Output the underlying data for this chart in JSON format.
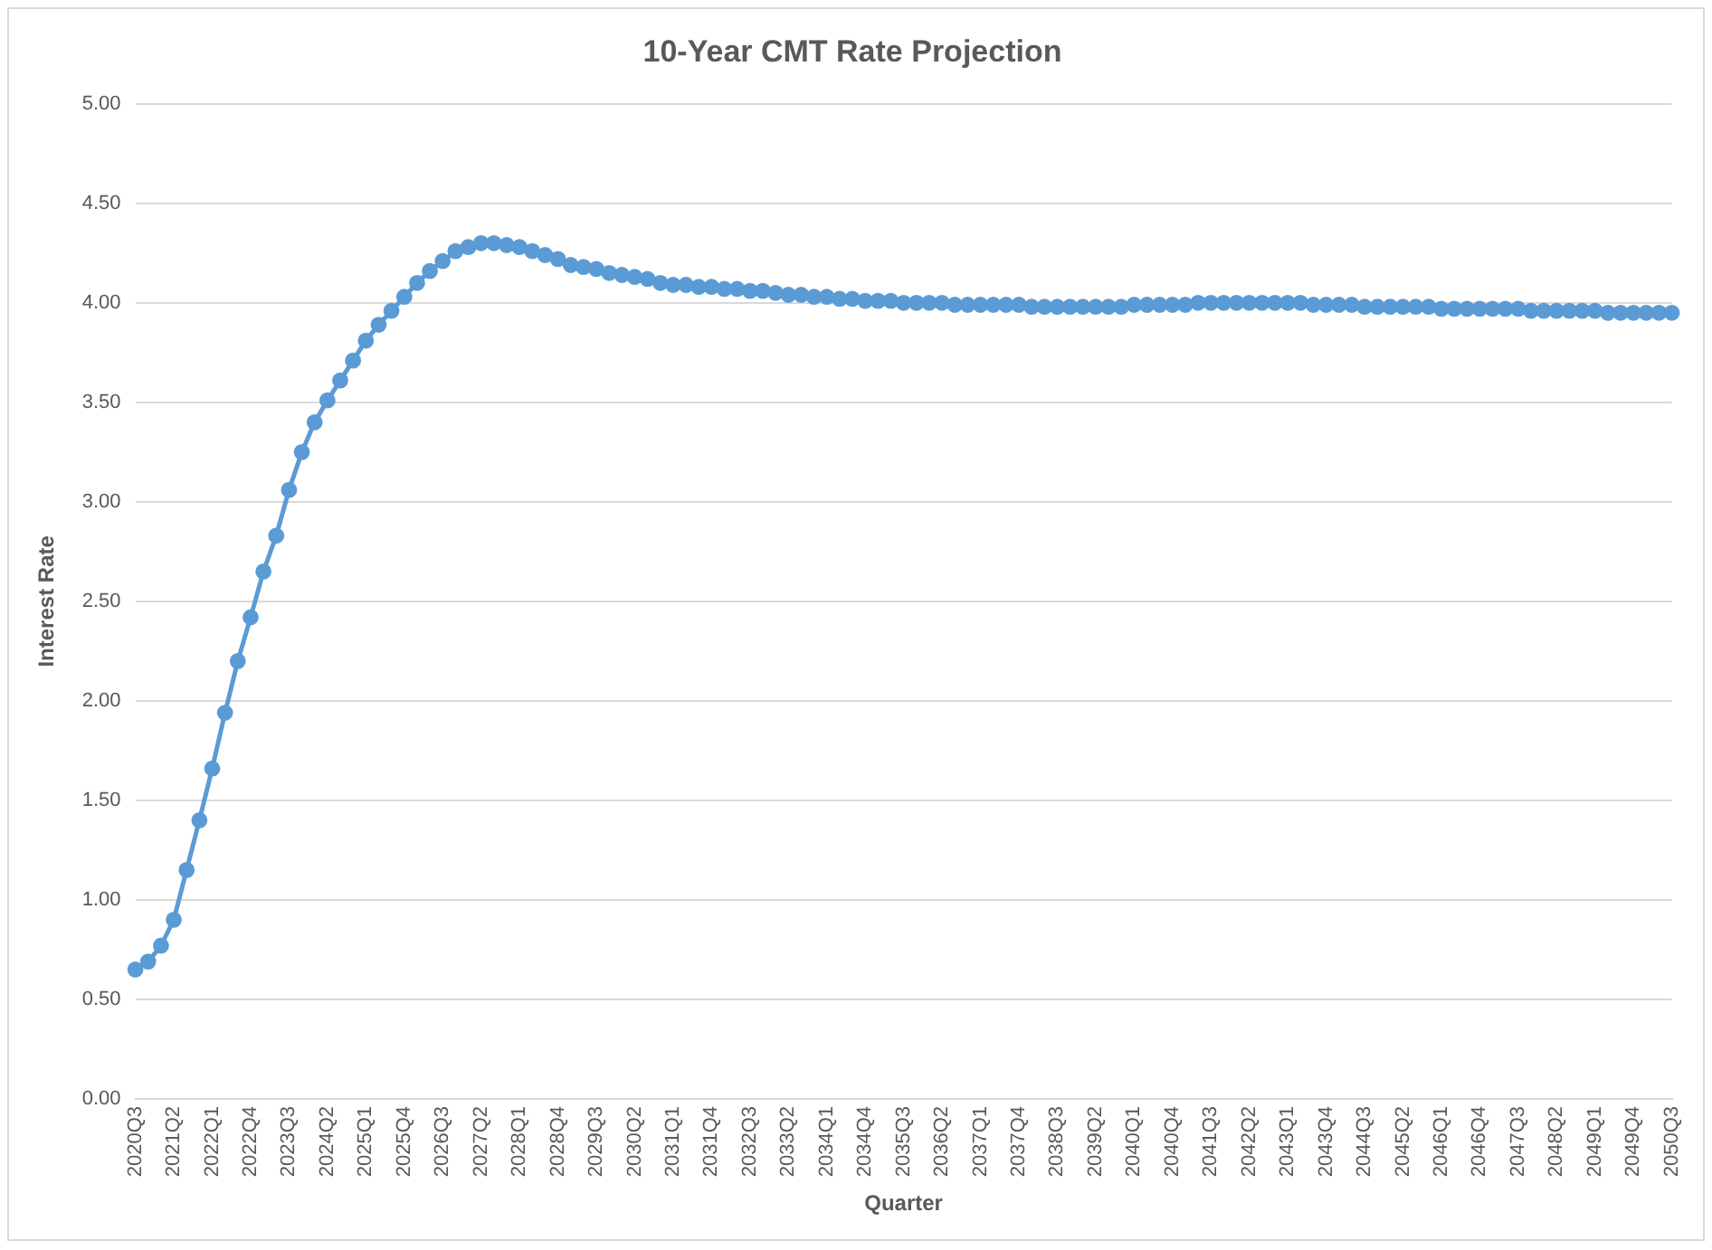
{
  "chart_data": {
    "type": "line",
    "title": "10-Year CMT Rate Projection",
    "xlabel": "Quarter",
    "ylabel": "Interest Rate",
    "categories": [
      "2020Q3",
      null,
      null,
      "2021Q2",
      null,
      null,
      "2022Q1",
      null,
      null,
      "2022Q4",
      null,
      null,
      "2023Q3",
      null,
      null,
      "2024Q2",
      null,
      null,
      "2025Q1",
      null,
      null,
      "2025Q4",
      null,
      null,
      "2026Q3",
      null,
      null,
      "2027Q2",
      null,
      null,
      "2028Q1",
      null,
      null,
      "2028Q4",
      null,
      null,
      "2029Q3",
      null,
      null,
      "2030Q2",
      null,
      null,
      "2031Q1",
      null,
      null,
      "2031Q4",
      null,
      null,
      "2032Q3",
      null,
      null,
      "2033Q2",
      null,
      null,
      "2034Q1",
      null,
      null,
      "2034Q4",
      null,
      null,
      "2035Q3",
      null,
      null,
      "2036Q2",
      null,
      null,
      "2037Q1",
      null,
      null,
      "2037Q4",
      null,
      null,
      "2038Q3",
      null,
      null,
      "2039Q2",
      null,
      null,
      "2040Q1",
      null,
      null,
      "2040Q4",
      null,
      null,
      "2041Q3",
      null,
      null,
      "2042Q2",
      null,
      null,
      "2043Q1",
      null,
      null,
      "2043Q4",
      null,
      null,
      "2044Q3",
      null,
      null,
      "2045Q2",
      null,
      null,
      "2046Q1",
      null,
      null,
      "2046Q4",
      null,
      null,
      "2047Q3",
      null,
      null,
      "2048Q2",
      null,
      null,
      "2049Q1",
      null,
      null,
      "2049Q4",
      null,
      null,
      "2050Q3"
    ],
    "series": [
      {
        "color": "#5b9bd5",
        "values": [
          0.65,
          0.69,
          0.77,
          0.9,
          1.15,
          1.4,
          1.66,
          1.94,
          2.2,
          2.42,
          2.65,
          2.83,
          3.06,
          3.25,
          3.4,
          3.51,
          3.61,
          3.71,
          3.81,
          3.89,
          3.96,
          4.03,
          4.1,
          4.16,
          4.21,
          4.26,
          4.28,
          4.3,
          4.3,
          4.29,
          4.28,
          4.26,
          4.24,
          4.22,
          4.19,
          4.18,
          4.17,
          4.15,
          4.14,
          4.13,
          4.12,
          4.1,
          4.09,
          4.09,
          4.08,
          4.08,
          4.07,
          4.07,
          4.06,
          4.06,
          4.05,
          4.04,
          4.04,
          4.03,
          4.03,
          4.02,
          4.02,
          4.01,
          4.01,
          4.01,
          4.0,
          4.0,
          4.0,
          4.0,
          3.99,
          3.99,
          3.99,
          3.99,
          3.99,
          3.99,
          3.98,
          3.98,
          3.98,
          3.98,
          3.98,
          3.98,
          3.98,
          3.98,
          3.99,
          3.99,
          3.99,
          3.99,
          3.99,
          4.0,
          4.0,
          4.0,
          4.0,
          4.0,
          4.0,
          4.0,
          4.0,
          4.0,
          3.99,
          3.99,
          3.99,
          3.99,
          3.98,
          3.98,
          3.98,
          3.98,
          3.98,
          3.98,
          3.97,
          3.97,
          3.97,
          3.97,
          3.97,
          3.97,
          3.97,
          3.96,
          3.96,
          3.96,
          3.96,
          3.96,
          3.96,
          3.95,
          3.95,
          3.95,
          3.95,
          3.95,
          3.95
        ]
      }
    ],
    "ylim": [
      0,
      5
    ],
    "yticks": [
      {
        "value": 0,
        "label": "0.00"
      },
      {
        "value": 0.5,
        "label": "0.50"
      },
      {
        "value": 1,
        "label": "1.00"
      },
      {
        "value": 1.5,
        "label": "1.50"
      },
      {
        "value": 2,
        "label": "2.00"
      },
      {
        "value": 2.5,
        "label": "2.50"
      },
      {
        "value": 3,
        "label": "3.00"
      },
      {
        "value": 3.5,
        "label": "3.50"
      },
      {
        "value": 4,
        "label": "4.00"
      },
      {
        "value": 4.5,
        "label": "4.50"
      },
      {
        "value": 5,
        "label": "5.00"
      }
    ],
    "grid": "y",
    "legend": false,
    "marker": "circle",
    "line_style": "solid"
  }
}
